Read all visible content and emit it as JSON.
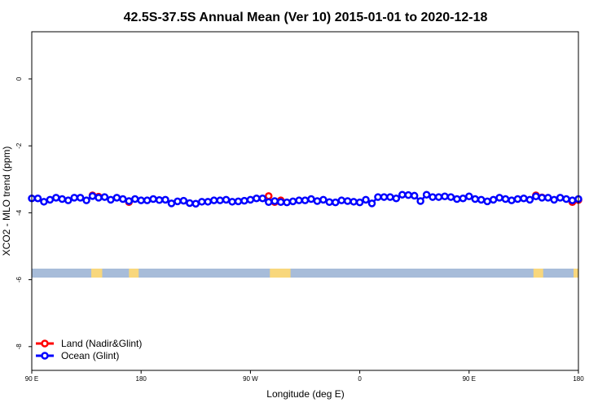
{
  "chart_data": {
    "type": "line",
    "title": "42.5S-37.5S Annual Mean (Ver 10)   2015-01-01 to 2020-12-18",
    "xlabel": "Longitude (deg E)",
    "ylabel": "XCO2 - MLO trend (ppm)",
    "xlim": [
      90,
      540
    ],
    "ylim": [
      -8.71,
      1.41
    ],
    "xticks": [
      90,
      180,
      270,
      360,
      450,
      540
    ],
    "xtick_labels": [
      "90 E",
      "180",
      "90 W",
      "0",
      "90 E",
      "180"
    ],
    "yticks": [
      0,
      -2,
      -4,
      -6,
      -8
    ],
    "ytick_labels": [
      "0",
      "-2",
      "-4",
      "-6",
      "-8"
    ],
    "grid": false,
    "legend_position": "bottom-left",
    "x_start": 90,
    "x_step": 5,
    "series": [
      {
        "name": "Land (Nadir&Glint)",
        "color": "#ff0000",
        "points": [
          [
            140,
            -3.48
          ],
          [
            145,
            -3.52
          ],
          [
            170,
            -3.68
          ],
          [
            285,
            -3.5
          ],
          [
            290,
            -3.68
          ],
          [
            295,
            -3.63
          ],
          [
            505,
            -3.48
          ],
          [
            510,
            -3.54
          ],
          [
            535,
            -3.68
          ],
          [
            540,
            -3.62
          ]
        ]
      },
      {
        "name": "Ocean (Glint)",
        "color": "#0000ff",
        "values": [
          -3.57,
          -3.57,
          -3.67,
          -3.61,
          -3.55,
          -3.59,
          -3.63,
          -3.55,
          -3.55,
          -3.63,
          -3.5,
          -3.55,
          -3.53,
          -3.61,
          -3.55,
          -3.59,
          -3.65,
          -3.59,
          -3.63,
          -3.63,
          -3.59,
          -3.62,
          -3.61,
          -3.72,
          -3.66,
          -3.64,
          -3.71,
          -3.73,
          -3.67,
          -3.67,
          -3.63,
          -3.63,
          -3.61,
          -3.67,
          -3.66,
          -3.64,
          -3.61,
          -3.57,
          -3.57,
          -3.68,
          -3.65,
          -3.68,
          -3.69,
          -3.66,
          -3.63,
          -3.63,
          -3.59,
          -3.65,
          -3.61,
          -3.68,
          -3.69,
          -3.63,
          -3.65,
          -3.67,
          -3.69,
          -3.61,
          -3.72,
          -3.53,
          -3.53,
          -3.53,
          -3.57,
          -3.46,
          -3.47,
          -3.49,
          -3.65,
          -3.46,
          -3.53,
          -3.53,
          -3.51,
          -3.53,
          -3.59,
          -3.57,
          -3.51,
          -3.59,
          -3.61,
          -3.66,
          -3.61,
          -3.55,
          -3.59,
          -3.63,
          -3.59,
          -3.57,
          -3.61,
          -3.51,
          -3.55,
          -3.55,
          -3.61,
          -3.55,
          -3.59,
          -3.63,
          -3.59
        ]
      }
    ],
    "surface_strip": {
      "ocean_color": "#a7bcd9",
      "land_color": "#f8d77c",
      "land_ranges": [
        [
          139,
          148
        ],
        [
          170,
          178
        ],
        [
          286,
          303
        ],
        [
          503,
          511
        ],
        [
          536,
          540
        ]
      ]
    }
  }
}
